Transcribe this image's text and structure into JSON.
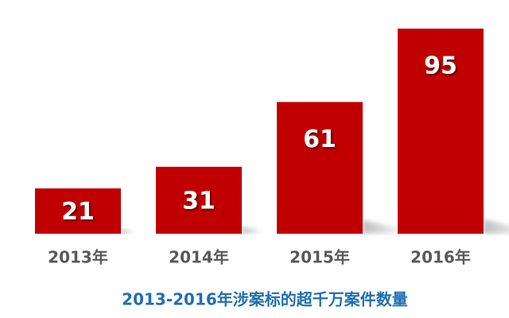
{
  "chart_data": {
    "type": "bar",
    "title": "2013-2016年涉案标的超千万案件数量",
    "categories": [
      "2013年",
      "2014年",
      "2015年",
      "2016年"
    ],
    "values": [
      21,
      31,
      61,
      95
    ],
    "color": "#c00000"
  }
}
